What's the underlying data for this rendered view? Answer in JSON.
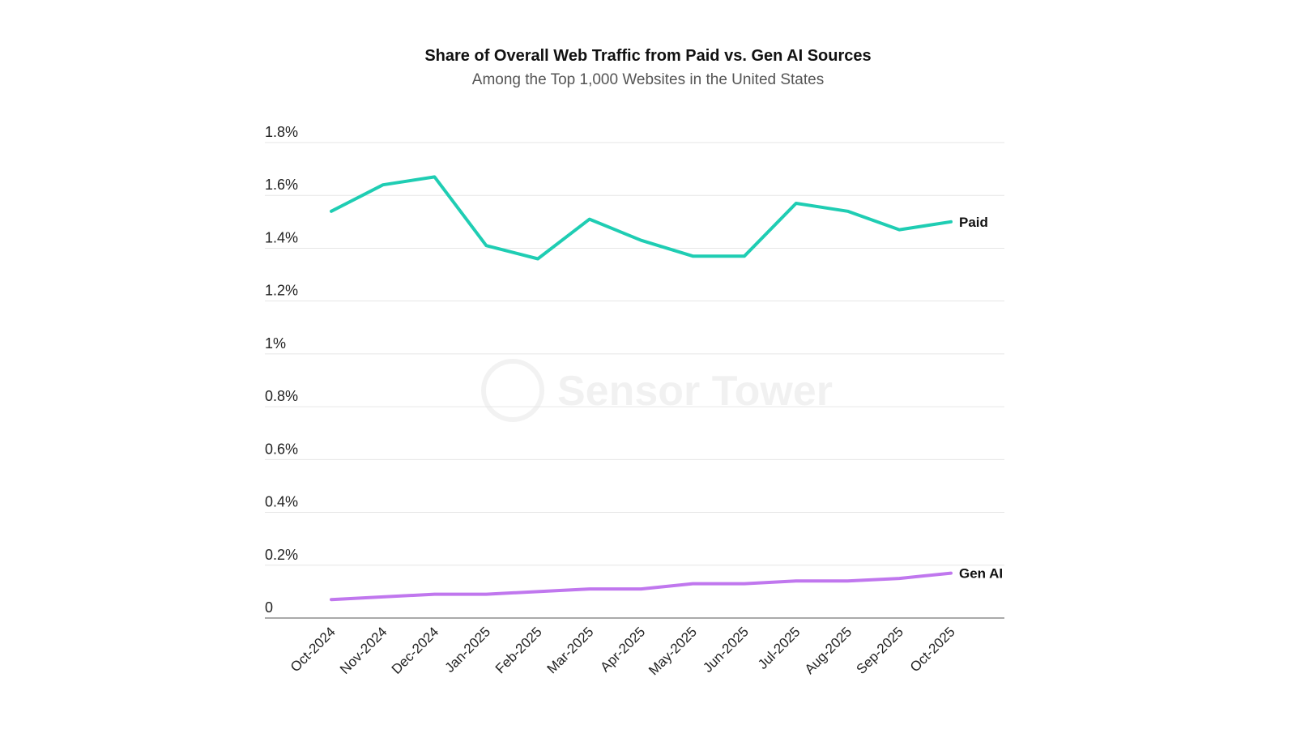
{
  "chart_data": {
    "type": "line",
    "title": "Share of Overall Web Traffic from Paid vs. Gen AI Sources",
    "subtitle": "Among the Top 1,000 Websites in the United States",
    "categories": [
      "Oct-2024",
      "Nov-2024",
      "Dec-2024",
      "Jan-2025",
      "Feb-2025",
      "Mar-2025",
      "Apr-2025",
      "May-2025",
      "Jun-2025",
      "Jul-2025",
      "Aug-2025",
      "Sep-2025",
      "Oct-2025"
    ],
    "series": [
      {
        "name": "Paid",
        "color": "#1fcdb3",
        "values": [
          1.54,
          1.64,
          1.67,
          1.41,
          1.36,
          1.51,
          1.43,
          1.37,
          1.37,
          1.57,
          1.54,
          1.47,
          1.5
        ]
      },
      {
        "name": "Gen AI",
        "color": "#c077ee",
        "values": [
          0.07,
          0.08,
          0.09,
          0.09,
          0.1,
          0.11,
          0.11,
          0.13,
          0.13,
          0.14,
          0.14,
          0.15,
          0.17
        ]
      }
    ],
    "y_ticks": [
      {
        "value": 0,
        "label": "0"
      },
      {
        "value": 0.2,
        "label": "0.2%"
      },
      {
        "value": 0.4,
        "label": "0.4%"
      },
      {
        "value": 0.6,
        "label": "0.6%"
      },
      {
        "value": 0.8,
        "label": "0.8%"
      },
      {
        "value": 1.0,
        "label": "1%"
      },
      {
        "value": 1.2,
        "label": "1.2%"
      },
      {
        "value": 1.4,
        "label": "1.4%"
      },
      {
        "value": 1.6,
        "label": "1.6%"
      },
      {
        "value": 1.8,
        "label": "1.8%"
      }
    ],
    "ylim": [
      0,
      1.8
    ],
    "grid": true,
    "xlabel": "",
    "ylabel": "",
    "watermark": "Sensor Tower"
  }
}
